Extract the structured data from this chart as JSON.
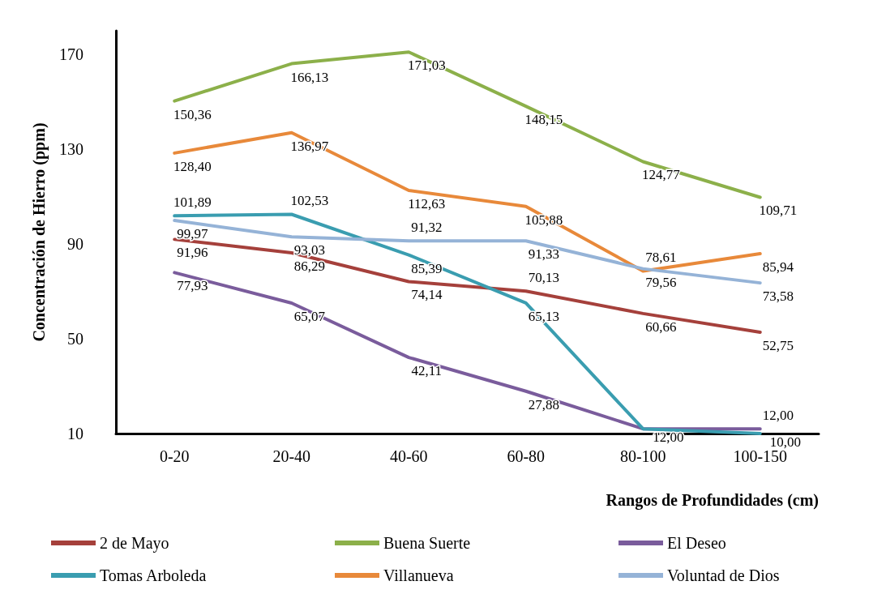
{
  "chart_data": {
    "type": "line",
    "xlabel": "Rangos de Profundidades (cm)",
    "ylabel": "Concentración de Hierro (ppm)",
    "categories": [
      "0-20",
      "20-40",
      "40-60",
      "60-80",
      "80-100",
      "100-150"
    ],
    "series": [
      {
        "name": "2 de Mayo",
        "color": "#a5403b",
        "values": [
          91.96,
          86.29,
          74.14,
          70.13,
          60.66,
          52.75
        ],
        "value_labels": [
          "91,96",
          "86,29",
          "74,14",
          "70,13",
          "60,66",
          "52,75"
        ]
      },
      {
        "name": "Buena Suerte",
        "color": "#8cb04a",
        "values": [
          150.36,
          166.13,
          171.03,
          148.15,
          124.77,
          109.71
        ],
        "value_labels": [
          "150,36",
          "166,13",
          "171,03",
          "148,15",
          "124,77",
          "109,71"
        ]
      },
      {
        "name": "El Deseo",
        "color": "#7a5c9c",
        "values": [
          77.93,
          65.07,
          42.11,
          27.88,
          12,
          12
        ],
        "value_labels": [
          "77,93",
          "65,07",
          "42,11",
          "27,88",
          null,
          "12,00"
        ]
      },
      {
        "name": "Tomas Arboleda",
        "color": "#3a9db0",
        "values": [
          101.89,
          102.53,
          85.39,
          65.13,
          12,
          10
        ],
        "value_labels": [
          "101,89",
          "102,53",
          "85,39",
          "65,13",
          "12,00",
          "10,00"
        ]
      },
      {
        "name": "Villanueva",
        "color": "#e8893a",
        "values": [
          128.4,
          136.97,
          112.63,
          105.88,
          78.61,
          85.94
        ],
        "value_labels": [
          "128,40",
          "136,97",
          "112,63",
          "105,88",
          "78,61",
          "85,94"
        ]
      },
      {
        "name": "Voluntad de Dios",
        "color": "#95b3d7",
        "values": [
          99.97,
          93.03,
          91.32,
          91.33,
          79.56,
          73.58
        ],
        "value_labels": [
          "99,97",
          "93,03",
          "91,32",
          "91,33",
          "79,56",
          "73,58"
        ]
      }
    ],
    "ylim": [
      10,
      180
    ],
    "yticks": [
      10,
      50,
      90,
      130,
      170
    ],
    "grid": false,
    "legend": "bottom",
    "marker": "none",
    "line_style": "solid"
  }
}
